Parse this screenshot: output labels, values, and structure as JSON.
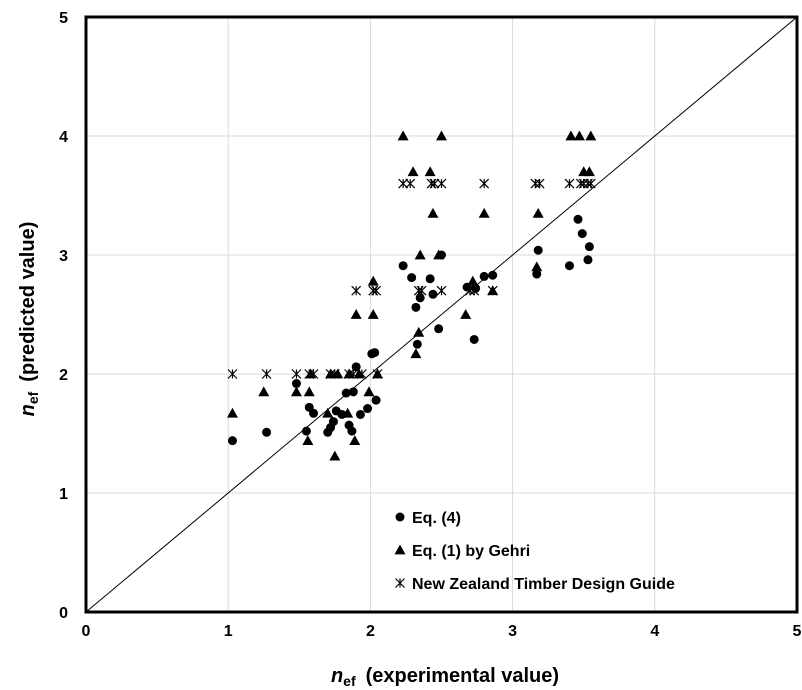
{
  "chart_data": {
    "type": "scatter",
    "xlabel": {
      "var": "n",
      "sub": "ef",
      "text": "(experimental value)"
    },
    "ylabel": {
      "var": "n",
      "sub": "ef",
      "text": "(predicted value)"
    },
    "xlim": [
      0,
      5
    ],
    "ylim": [
      0,
      5
    ],
    "x_ticks": [
      "0",
      "1",
      "2",
      "3",
      "4",
      "5"
    ],
    "y_ticks": [
      "0",
      "1",
      "2",
      "3",
      "4",
      "5"
    ],
    "grid": true,
    "reference_line": "y = x",
    "legend_position": "bottom-right",
    "series": [
      {
        "name": "Eq. (4)",
        "marker": "circle",
        "points": [
          [
            1.03,
            1.44
          ],
          [
            1.27,
            1.51
          ],
          [
            1.48,
            1.92
          ],
          [
            1.55,
            1.52
          ],
          [
            1.57,
            1.72
          ],
          [
            1.6,
            1.67
          ],
          [
            1.7,
            1.51
          ],
          [
            1.72,
            1.55
          ],
          [
            1.74,
            1.6
          ],
          [
            1.76,
            1.69
          ],
          [
            1.8,
            1.66
          ],
          [
            1.83,
            1.84
          ],
          [
            1.85,
            1.57
          ],
          [
            1.87,
            1.52
          ],
          [
            1.88,
            1.85
          ],
          [
            1.9,
            2.06
          ],
          [
            1.93,
            1.66
          ],
          [
            1.98,
            1.71
          ],
          [
            2.01,
            2.17
          ],
          [
            2.03,
            2.18
          ],
          [
            2.04,
            1.78
          ],
          [
            2.23,
            2.91
          ],
          [
            2.29,
            2.81
          ],
          [
            2.32,
            2.56
          ],
          [
            2.33,
            2.25
          ],
          [
            2.35,
            2.64
          ],
          [
            2.42,
            2.8
          ],
          [
            2.44,
            2.67
          ],
          [
            2.48,
            2.38
          ],
          [
            2.5,
            3.0
          ],
          [
            2.68,
            2.73
          ],
          [
            2.73,
            2.29
          ],
          [
            2.74,
            2.72
          ],
          [
            2.8,
            2.82
          ],
          [
            2.86,
            2.83
          ],
          [
            3.17,
            2.84
          ],
          [
            3.18,
            3.04
          ],
          [
            3.4,
            2.91
          ],
          [
            3.46,
            3.3
          ],
          [
            3.49,
            3.18
          ],
          [
            3.53,
            2.96
          ],
          [
            3.54,
            3.07
          ]
        ]
      },
      {
        "name": "Eq. (1) by Gehri",
        "marker": "triangle",
        "points": [
          [
            1.03,
            1.67
          ],
          [
            1.25,
            1.85
          ],
          [
            1.48,
            1.85
          ],
          [
            1.56,
            1.44
          ],
          [
            1.57,
            1.85
          ],
          [
            1.58,
            2.0
          ],
          [
            1.7,
            1.67
          ],
          [
            1.72,
            2.0
          ],
          [
            1.75,
            1.31
          ],
          [
            1.77,
            2.0
          ],
          [
            1.84,
            1.67
          ],
          [
            1.85,
            2.0
          ],
          [
            1.89,
            1.44
          ],
          [
            1.9,
            2.5
          ],
          [
            1.92,
            2.0
          ],
          [
            1.99,
            1.85
          ],
          [
            2.02,
            2.5
          ],
          [
            2.02,
            2.78
          ],
          [
            2.05,
            2.0
          ],
          [
            2.23,
            4.0
          ],
          [
            2.3,
            3.7
          ],
          [
            2.32,
            2.17
          ],
          [
            2.34,
            2.35
          ],
          [
            2.35,
            3.0
          ],
          [
            2.42,
            3.7
          ],
          [
            2.44,
            3.35
          ],
          [
            2.48,
            3.0
          ],
          [
            2.5,
            4.0
          ],
          [
            2.67,
            2.5
          ],
          [
            2.72,
            2.78
          ],
          [
            2.8,
            3.35
          ],
          [
            2.86,
            2.7
          ],
          [
            3.17,
            2.9
          ],
          [
            3.18,
            3.35
          ],
          [
            3.41,
            4.0
          ],
          [
            3.47,
            4.0
          ],
          [
            3.5,
            3.7
          ],
          [
            3.54,
            3.7
          ],
          [
            3.55,
            4.0
          ]
        ]
      },
      {
        "name": "New Zealand Timber Design Guide",
        "marker": "asterisk",
        "points": [
          [
            1.03,
            2.0
          ],
          [
            1.27,
            2.0
          ],
          [
            1.48,
            2.0
          ],
          [
            1.57,
            2.0
          ],
          [
            1.6,
            2.0
          ],
          [
            1.72,
            2.0
          ],
          [
            1.75,
            2.0
          ],
          [
            1.85,
            2.0
          ],
          [
            1.88,
            2.0
          ],
          [
            1.9,
            2.7
          ],
          [
            1.94,
            2.0
          ],
          [
            2.02,
            2.7
          ],
          [
            2.04,
            2.7
          ],
          [
            2.05,
            2.0
          ],
          [
            2.23,
            3.6
          ],
          [
            2.28,
            3.6
          ],
          [
            2.34,
            2.7
          ],
          [
            2.36,
            2.7
          ],
          [
            2.43,
            3.6
          ],
          [
            2.45,
            3.6
          ],
          [
            2.5,
            3.6
          ],
          [
            2.5,
            2.7
          ],
          [
            2.7,
            2.7
          ],
          [
            2.73,
            2.7
          ],
          [
            2.8,
            3.6
          ],
          [
            2.86,
            2.7
          ],
          [
            3.16,
            3.6
          ],
          [
            3.19,
            3.6
          ],
          [
            3.4,
            3.6
          ],
          [
            3.48,
            3.6
          ],
          [
            3.5,
            3.6
          ],
          [
            3.53,
            3.6
          ],
          [
            3.55,
            3.6
          ]
        ]
      }
    ]
  }
}
